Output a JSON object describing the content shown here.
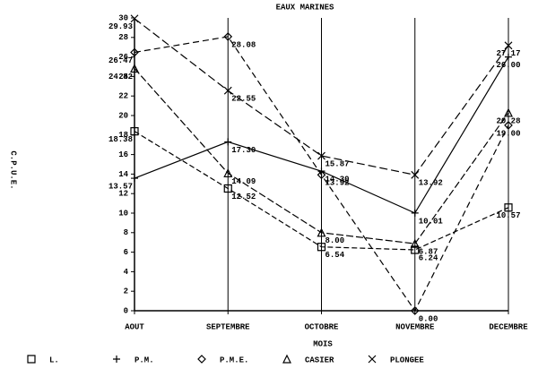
{
  "chart_data": {
    "type": "line",
    "title": "EAUX MARINES",
    "x_label": "MOIS",
    "y_label": "C.P.U.E.",
    "categories": [
      "AOUT",
      "SEPTEMBRE",
      "OCTOBRE",
      "NOVEMBRE",
      "DECEMBRE"
    ],
    "ylim": [
      0,
      30
    ],
    "yticks": [
      0,
      2,
      4,
      6,
      8,
      10,
      12,
      14,
      16,
      18,
      20,
      22,
      24,
      26,
      28,
      30
    ],
    "series": [
      {
        "name": "L.",
        "marker": "square",
        "color": "#000000",
        "values": [
          18.38,
          12.52,
          6.54,
          6.24,
          10.57
        ],
        "value_labels": [
          "18.38",
          "12.52",
          "6.54",
          "6.24",
          "10.57"
        ]
      },
      {
        "name": "P.M.",
        "marker": "plus",
        "color": "#000000",
        "values": [
          13.57,
          17.3,
          14.3,
          10.01,
          26.0
        ],
        "value_labels": [
          "13.57",
          "17.30",
          "14.30",
          "10.01",
          "26.00"
        ]
      },
      {
        "name": "P.M.E.",
        "marker": "diamond",
        "color": "#000000",
        "values": [
          26.47,
          28.08,
          13.92,
          0.0,
          19.0
        ],
        "value_labels": [
          "26.47",
          "28.08",
          "13.92",
          "0.00",
          "19.00"
        ]
      },
      {
        "name": "CASIER",
        "marker": "triangle",
        "color": "#000000",
        "values": [
          24.82,
          14.09,
          8.0,
          6.87,
          20.28
        ],
        "value_labels": [
          "24.82",
          "14.09",
          "8.00",
          "6.87",
          "20.28"
        ]
      },
      {
        "name": "PLONGEE",
        "marker": "x",
        "color": "#000000",
        "values": [
          29.93,
          22.55,
          15.87,
          13.92,
          27.17
        ],
        "value_labels": [
          "29.93",
          "22.55",
          "15.87",
          "13.92",
          "27.17"
        ]
      }
    ]
  }
}
